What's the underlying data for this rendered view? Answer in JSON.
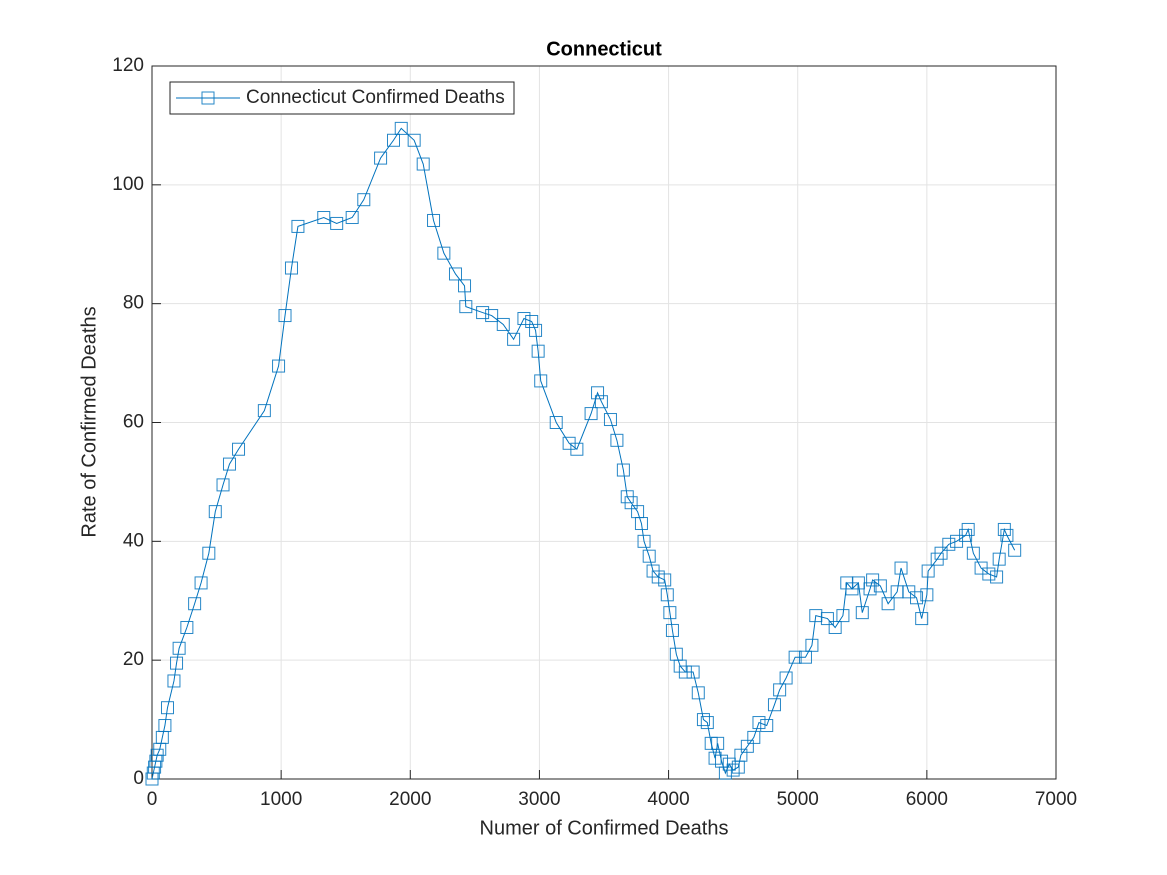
{
  "chart_data": {
    "type": "line",
    "title": "Connecticut",
    "xlabel": "Numer of Confirmed Deaths",
    "ylabel": "Rate of Confirmed Deaths",
    "x": [
      0,
      10,
      20,
      30,
      40,
      60,
      80,
      100,
      120,
      170,
      190,
      210,
      270,
      330,
      380,
      440,
      490,
      550,
      600,
      670,
      870,
      980,
      1030,
      1080,
      1130,
      1330,
      1430,
      1550,
      1640,
      1770,
      1870,
      1930,
      2030,
      2100,
      2180,
      2260,
      2350,
      2420,
      2430,
      2560,
      2630,
      2720,
      2800,
      2880,
      2940,
      2970,
      2990,
      3010,
      3130,
      3230,
      3290,
      3400,
      3450,
      3480,
      3550,
      3600,
      3650,
      3680,
      3710,
      3760,
      3790,
      3810,
      3850,
      3880,
      3920,
      3970,
      3990,
      4010,
      4030,
      4060,
      4090,
      4130,
      4190,
      4230,
      4270,
      4300,
      4330,
      4360,
      4380,
      4410,
      4440,
      4470,
      4500,
      4540,
      4560,
      4610,
      4660,
      4700,
      4760,
      4820,
      4860,
      4910,
      4980,
      5060,
      5110,
      5140,
      5230,
      5290,
      5350,
      5380,
      5420,
      5470,
      5500,
      5560,
      5580,
      5640,
      5700,
      5770,
      5800,
      5860,
      5920,
      5960,
      6000,
      6010,
      6080,
      6110,
      6170,
      6230,
      6300,
      6320,
      6360,
      6420,
      6480,
      6540,
      6560,
      6600,
      6620,
      6680
    ],
    "series": [
      {
        "name": "Connecticut Confirmed Deaths",
        "color": "#0072bd",
        "values": [
          0,
          1,
          2,
          3,
          4,
          5,
          7,
          9,
          12,
          16.5,
          19.5,
          22,
          25.5,
          29.5,
          33,
          38,
          45,
          49.5,
          53,
          55.5,
          62,
          69.5,
          78,
          86,
          93,
          94.5,
          93.5,
          94.5,
          97.5,
          104.5,
          107.5,
          109.5,
          107.5,
          103.5,
          94,
          88.5,
          85,
          83,
          79.5,
          78.5,
          78,
          76.5,
          74,
          77.5,
          77,
          75.5,
          72,
          67,
          60,
          56.5,
          55.5,
          61.5,
          65,
          63.5,
          60.5,
          57,
          52,
          47.5,
          46.5,
          45,
          43,
          40,
          37.5,
          35,
          34,
          33.5,
          31,
          28,
          25,
          21,
          19,
          18,
          18,
          14.5,
          10,
          9.5,
          6,
          3.5,
          6,
          3,
          1,
          2.5,
          1.5,
          2,
          4,
          5.5,
          7,
          9.5,
          9,
          12.5,
          15,
          17,
          20.5,
          20.5,
          22.5,
          27.5,
          27,
          25.5,
          27.5,
          33,
          32,
          33,
          28,
          32,
          33.5,
          32.5,
          29.5,
          31.5,
          35.5,
          31.5,
          30.5,
          27,
          31,
          35,
          37,
          38,
          39.5,
          40,
          41,
          42,
          38,
          35.5,
          34.5,
          34,
          37,
          42,
          41,
          38.5
        ]
      }
    ],
    "xlim": [
      0,
      7000
    ],
    "ylim": [
      0,
      120
    ],
    "xticks": [
      0,
      1000,
      2000,
      3000,
      4000,
      5000,
      6000,
      7000
    ],
    "yticks": [
      0,
      20,
      40,
      60,
      80,
      100,
      120
    ],
    "grid": true,
    "legend": "upper left",
    "marker": "square"
  }
}
